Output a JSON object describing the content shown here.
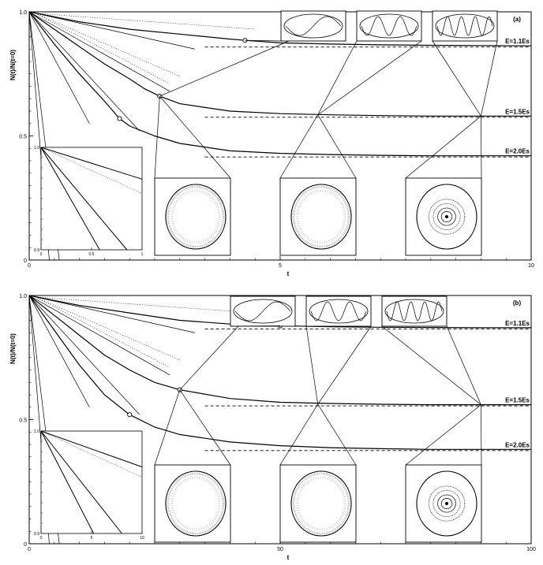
{
  "chart_data": [
    {
      "type": "line",
      "panel_label": "(a)",
      "xlabel": "t",
      "ylabel": "N(t)/N(t=0)",
      "xlim": [
        0,
        10
      ],
      "ylim": [
        0,
        1
      ],
      "x_ticks": [
        "0",
        "5",
        "10"
      ],
      "y_ticks": [
        "0",
        "0.5",
        "1.0"
      ],
      "series": [
        {
          "name": "E=1.1Es",
          "x": [
            0,
            0.5,
            1,
            2,
            3,
            4,
            4.3,
            5,
            6,
            7,
            8,
            9,
            10
          ],
          "y": [
            1.0,
            0.98,
            0.96,
            0.93,
            0.91,
            0.89,
            0.885,
            0.875,
            0.87,
            0.867,
            0.865,
            0.864,
            0.863
          ]
        },
        {
          "name": "E=1.5Es",
          "x": [
            0,
            0.5,
            1,
            1.5,
            2,
            2.3,
            2.6,
            3,
            4,
            5,
            6,
            7,
            8,
            9,
            10
          ],
          "y": [
            1.0,
            0.93,
            0.86,
            0.79,
            0.73,
            0.69,
            0.66,
            0.63,
            0.6,
            0.59,
            0.585,
            0.582,
            0.58,
            0.58,
            0.58
          ]
        },
        {
          "name": "E=2.0Es",
          "x": [
            0,
            0.5,
            1,
            1.5,
            1.8,
            2,
            2.5,
            3,
            4,
            5,
            6,
            7,
            8,
            9,
            10
          ],
          "y": [
            1.0,
            0.87,
            0.75,
            0.64,
            0.57,
            0.54,
            0.5,
            0.47,
            0.44,
            0.43,
            0.425,
            0.422,
            0.42,
            0.42,
            0.42
          ]
        }
      ],
      "inset": {
        "xlim": [
          0,
          1
        ],
        "ylim": [
          0.9,
          1.0
        ],
        "x_ticks": [
          "0",
          "0.5",
          "1"
        ],
        "y_ticks": [
          "0.9",
          "1.0"
        ],
        "series": [
          {
            "x": [
              0,
              1
            ],
            "y": [
              1.0,
              0.969
            ]
          },
          {
            "x": [
              0,
              0.85
            ],
            "y": [
              1.0,
              0.9
            ]
          },
          {
            "x": [
              0,
              0.58
            ],
            "y": [
              1.0,
              0.9
            ]
          }
        ]
      }
    },
    {
      "type": "line",
      "panel_label": "(b)",
      "xlabel": "t",
      "ylabel": "N(t)/N(t=0)",
      "xlim": [
        0,
        100
      ],
      "ylim": [
        0,
        1
      ],
      "x_ticks": [
        "0",
        "50",
        "100"
      ],
      "y_ticks": [
        "0",
        "0.5",
        "1.0"
      ],
      "series": [
        {
          "name": "E=1.1Es",
          "x": [
            0,
            5,
            10,
            20,
            30,
            40,
            50,
            60,
            70,
            80,
            90,
            100
          ],
          "y": [
            1.0,
            0.98,
            0.96,
            0.93,
            0.9,
            0.885,
            0.878,
            0.874,
            0.872,
            0.871,
            0.87,
            0.87
          ]
        },
        {
          "name": "E=1.5Es",
          "x": [
            0,
            5,
            10,
            15,
            20,
            25,
            30,
            40,
            50,
            60,
            70,
            80,
            90,
            100
          ],
          "y": [
            1.0,
            0.92,
            0.84,
            0.76,
            0.7,
            0.65,
            0.62,
            0.585,
            0.57,
            0.565,
            0.562,
            0.56,
            0.56,
            0.56
          ]
        },
        {
          "name": "E=2.0Es",
          "x": [
            0,
            5,
            10,
            15,
            20,
            25,
            30,
            40,
            50,
            60,
            70,
            80,
            90,
            100
          ],
          "y": [
            1.0,
            0.86,
            0.72,
            0.6,
            0.52,
            0.47,
            0.44,
            0.41,
            0.395,
            0.387,
            0.383,
            0.38,
            0.38,
            0.38
          ]
        }
      ],
      "inset": {
        "xlim": [
          0,
          10
        ],
        "ylim": [
          0.9,
          1.0
        ],
        "x_ticks": [
          "0",
          "5",
          "10"
        ],
        "y_ticks": [
          "0.9",
          "1.0"
        ],
        "series": [
          {
            "x": [
              0,
              10
            ],
            "y": [
              1.0,
              0.965
            ]
          },
          {
            "x": [
              0,
              8
            ],
            "y": [
              1.0,
              0.9
            ]
          },
          {
            "x": [
              0,
              5.2
            ],
            "y": [
              1.0,
              0.9
            ]
          }
        ]
      }
    }
  ]
}
